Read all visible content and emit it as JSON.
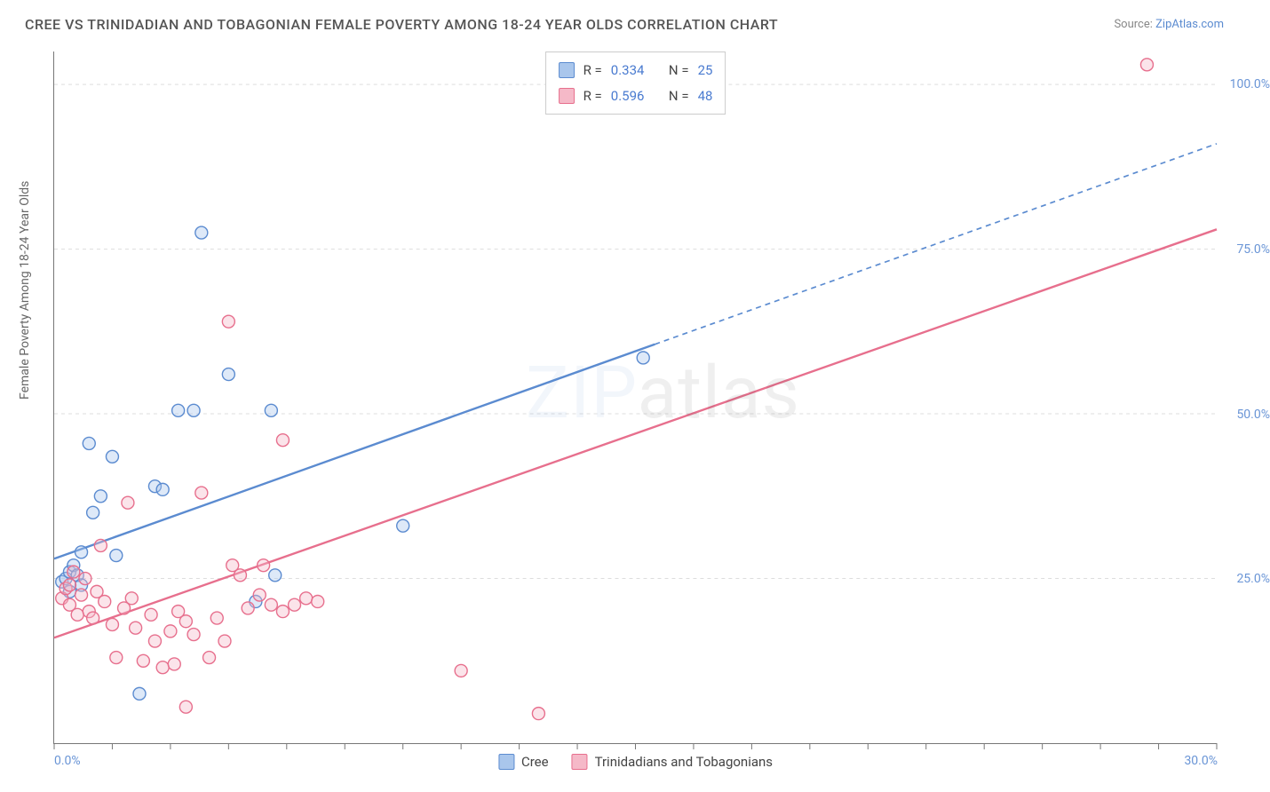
{
  "title": "CREE VS TRINIDADIAN AND TOBAGONIAN FEMALE POVERTY AMONG 18-24 YEAR OLDS CORRELATION CHART",
  "source_label": "Source:",
  "source_name": "ZipAtlas.com",
  "y_axis_label": "Female Poverty Among 18-24 Year Olds",
  "watermark": {
    "part1": "ZIP",
    "part2": "atlas"
  },
  "chart": {
    "type": "scatter",
    "background_color": "#ffffff",
    "axis_color": "#777777",
    "grid_color": "#dddddd",
    "grid_dash": "4 4",
    "tick_label_color": "#6a95d6",
    "tick_fontsize": 14,
    "title_fontsize": 16,
    "label_fontsize": 14,
    "xlim": [
      0,
      30
    ],
    "ylim": [
      0,
      105
    ],
    "x_ticks_major": [
      0,
      15,
      30
    ],
    "x_ticks_minor": [
      1.5,
      3,
      4.5,
      6,
      7.5,
      9,
      10.5,
      12,
      13.5,
      16.5,
      18,
      19.5,
      21,
      22.5,
      24,
      25.5,
      27,
      28.5
    ],
    "x_tick_labels": [
      "0.0%",
      "",
      "30.0%"
    ],
    "y_ticks": [
      25,
      50,
      75,
      100
    ],
    "y_tick_labels": [
      "25.0%",
      "50.0%",
      "75.0%",
      "100.0%"
    ],
    "marker_radius": 7,
    "marker_stroke_width": 1.4,
    "marker_fill_opacity": 0.38,
    "line_width": 2.4,
    "series": [
      {
        "key": "cree",
        "label": "Cree",
        "color_stroke": "#5b8bd0",
        "color_fill": "#a9c6ec",
        "R": "0.334",
        "N": "25",
        "regression": {
          "x0": 0,
          "y0": 28,
          "x1": 30,
          "y1": 91,
          "solid_until_x": 15.5
        },
        "points": [
          [
            0.2,
            24.5
          ],
          [
            0.3,
            25.0
          ],
          [
            0.4,
            23.0
          ],
          [
            0.4,
            26.0
          ],
          [
            0.5,
            27.0
          ],
          [
            0.6,
            25.5
          ],
          [
            0.7,
            29.0
          ],
          [
            0.7,
            24.0
          ],
          [
            0.9,
            45.5
          ],
          [
            1.0,
            35.0
          ],
          [
            1.2,
            37.5
          ],
          [
            1.5,
            43.5
          ],
          [
            1.6,
            28.5
          ],
          [
            2.2,
            7.5
          ],
          [
            2.6,
            39.0
          ],
          [
            2.8,
            38.5
          ],
          [
            3.2,
            50.5
          ],
          [
            3.6,
            50.5
          ],
          [
            3.8,
            77.5
          ],
          [
            4.5,
            56.0
          ],
          [
            5.2,
            21.5
          ],
          [
            5.6,
            50.5
          ],
          [
            5.7,
            25.5
          ],
          [
            9.0,
            33.0
          ],
          [
            15.2,
            58.5
          ]
        ]
      },
      {
        "key": "trinidad",
        "label": "Trinidadians and Tobagonians",
        "color_stroke": "#e76f8d",
        "color_fill": "#f5b9c8",
        "R": "0.596",
        "N": "48",
        "regression": {
          "x0": 0,
          "y0": 16,
          "x1": 30,
          "y1": 78,
          "solid_until_x": 30
        },
        "points": [
          [
            0.2,
            22.0
          ],
          [
            0.3,
            23.5
          ],
          [
            0.4,
            21.0
          ],
          [
            0.4,
            24.0
          ],
          [
            0.5,
            26.0
          ],
          [
            0.6,
            19.5
          ],
          [
            0.7,
            22.5
          ],
          [
            0.8,
            25.0
          ],
          [
            0.9,
            20.0
          ],
          [
            1.0,
            19.0
          ],
          [
            1.1,
            23.0
          ],
          [
            1.2,
            30.0
          ],
          [
            1.3,
            21.5
          ],
          [
            1.5,
            18.0
          ],
          [
            1.6,
            13.0
          ],
          [
            1.8,
            20.5
          ],
          [
            1.9,
            36.5
          ],
          [
            2.0,
            22.0
          ],
          [
            2.1,
            17.5
          ],
          [
            2.3,
            12.5
          ],
          [
            2.5,
            19.5
          ],
          [
            2.6,
            15.5
          ],
          [
            2.8,
            11.5
          ],
          [
            3.0,
            17.0
          ],
          [
            3.1,
            12.0
          ],
          [
            3.2,
            20.0
          ],
          [
            3.4,
            18.5
          ],
          [
            3.6,
            16.5
          ],
          [
            3.8,
            38.0
          ],
          [
            4.0,
            13.0
          ],
          [
            4.2,
            19.0
          ],
          [
            4.4,
            15.5
          ],
          [
            4.6,
            27.0
          ],
          [
            4.8,
            25.5
          ],
          [
            5.0,
            20.5
          ],
          [
            5.3,
            22.5
          ],
          [
            5.4,
            27.0
          ],
          [
            5.6,
            21.0
          ],
          [
            5.9,
            20.0
          ],
          [
            5.9,
            46.0
          ],
          [
            6.2,
            21.0
          ],
          [
            6.5,
            22.0
          ],
          [
            6.8,
            21.5
          ],
          [
            4.5,
            64.0
          ],
          [
            10.5,
            11.0
          ],
          [
            12.5,
            4.5
          ],
          [
            3.4,
            5.5
          ],
          [
            28.2,
            103.0
          ]
        ]
      }
    ],
    "legend_top": {
      "border_color": "#cccccc",
      "text_color": "#444444",
      "value_color": "#4a7bd0",
      "R_label": "R =",
      "N_label": "N ="
    }
  }
}
